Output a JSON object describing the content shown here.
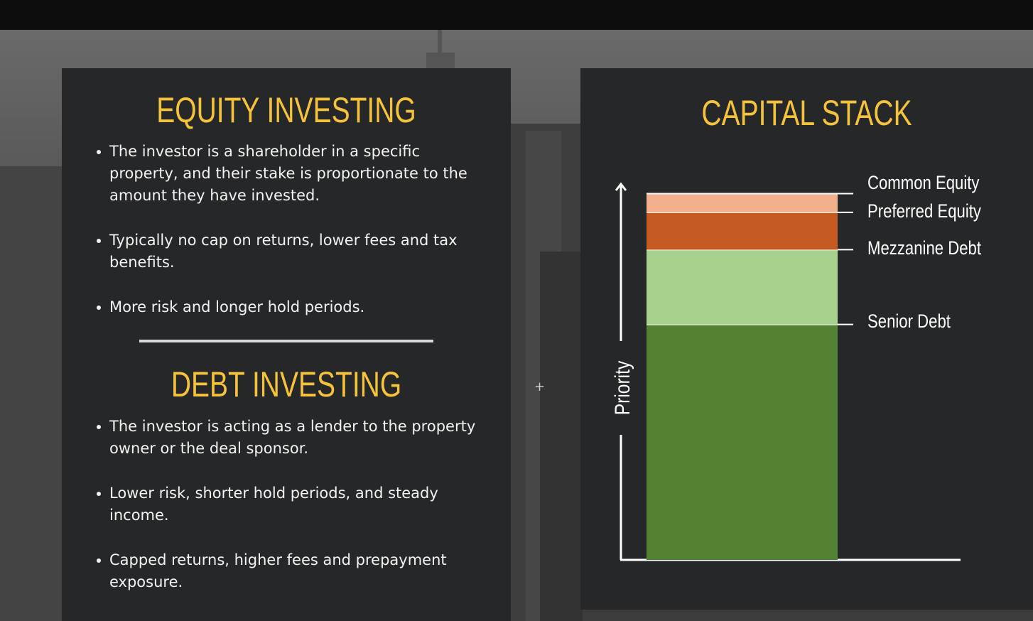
{
  "equity": {
    "title": "EQUITY INVESTING",
    "bullets": [
      "The investor is a shareholder in a specific property, and their stake is proportionate to the amount they have invested.",
      "Typically no cap on returns, lower fees and tax benefits.",
      "More risk and longer hold periods."
    ]
  },
  "debt": {
    "title": "DEBT INVESTING",
    "bullets": [
      "The investor is acting as a lender to the property owner or the deal sponsor.",
      "Lower risk, shorter hold periods, and steady income.",
      "Capped returns, higher fees and prepayment exposure."
    ]
  },
  "capital_stack": {
    "title": "CAPITAL STACK",
    "axis_label": "Priority",
    "layers": [
      {
        "name": "Common Equity",
        "color": "#f2b08d"
      },
      {
        "name": "Preferred Equity",
        "color": "#c45a21"
      },
      {
        "name": "Mezzanine Debt",
        "color": "#a9d18e"
      },
      {
        "name": "Senior Debt",
        "color": "#548235"
      }
    ]
  },
  "chart_data": {
    "type": "bar",
    "title": "CAPITAL STACK",
    "ylabel": "Priority",
    "stacked": true,
    "categories": [
      ""
    ],
    "series": [
      {
        "name": "Senior Debt",
        "values": [
          63
        ]
      },
      {
        "name": "Mezzanine Debt",
        "values": [
          20
        ]
      },
      {
        "name": "Preferred Equity",
        "values": [
          10
        ]
      },
      {
        "name": "Common Equity",
        "values": [
          5
        ]
      }
    ],
    "ylim": [
      0,
      100
    ],
    "grid": false,
    "legend": "right"
  }
}
